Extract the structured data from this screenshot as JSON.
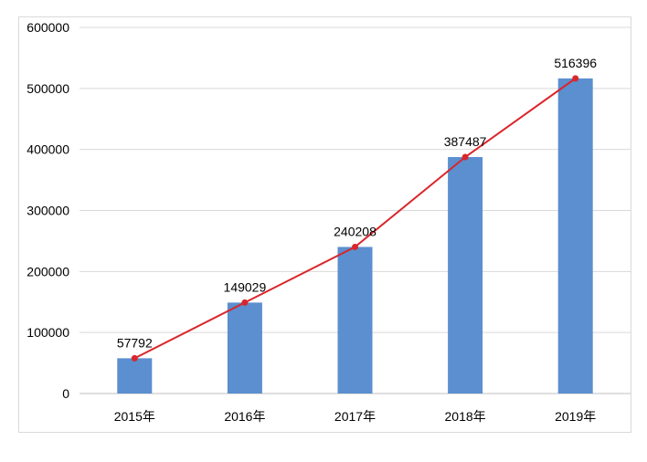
{
  "chart_data": {
    "type": "bar",
    "categories": [
      "2015年",
      "2016年",
      "2017年",
      "2018年",
      "2019年"
    ],
    "values": [
      57792,
      149029,
      240208,
      387487,
      516396
    ],
    "overlay_line": {
      "values": [
        57792,
        149029,
        240208,
        387487,
        516396
      ],
      "color": "#d9262b"
    },
    "data_labels": [
      "57792",
      "149029",
      "240208",
      "387487",
      "516396"
    ],
    "yticks": [
      0,
      100000,
      200000,
      300000,
      400000,
      500000,
      600000
    ],
    "ytick_labels": [
      "0",
      "100000",
      "200000",
      "300000",
      "400000",
      "500000",
      "600000"
    ],
    "ylim": [
      0,
      600000
    ],
    "title": "",
    "xlabel": "",
    "ylabel": "",
    "grid": true,
    "legend": "none",
    "colors": {
      "bar": "#5b8fcf",
      "line": "#d9262b",
      "grid": "#d9d9d9",
      "axis": "#bfbfbf"
    }
  }
}
